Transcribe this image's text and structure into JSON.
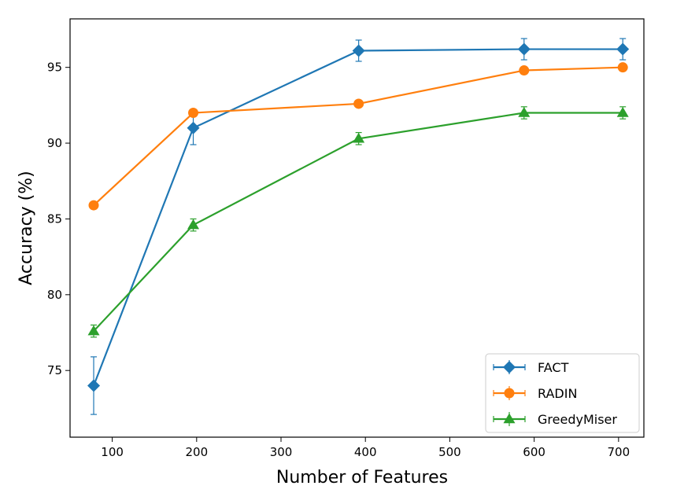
{
  "chart_data": {
    "type": "line",
    "title": "",
    "xlabel": "Number of Features",
    "ylabel": "Accuracy (%)",
    "xlim": [
      50,
      730
    ],
    "ylim": [
      70.6,
      98.2
    ],
    "xticks": [
      100,
      200,
      300,
      400,
      500,
      600,
      700
    ],
    "yticks": [
      75,
      80,
      85,
      90,
      95
    ],
    "grid": false,
    "legend_position": "lower-right",
    "series": [
      {
        "name": "FACT",
        "color": "#1f77b4",
        "marker": "diamond",
        "x": [
          78,
          196,
          392,
          588,
          705
        ],
        "y": [
          74.0,
          91.0,
          96.1,
          96.2,
          96.2
        ],
        "yerr": [
          1.9,
          1.1,
          0.7,
          0.7,
          0.7
        ]
      },
      {
        "name": "RADIN",
        "color": "#ff7f0e",
        "marker": "circle",
        "x": [
          78,
          196,
          392,
          588,
          705
        ],
        "y": [
          85.9,
          92.0,
          92.6,
          94.8,
          95.0
        ],
        "yerr": [
          0,
          0,
          0,
          0,
          0
        ]
      },
      {
        "name": "GreedyMiser",
        "color": "#2ca02c",
        "marker": "triangle",
        "x": [
          78,
          196,
          392,
          588,
          705
        ],
        "y": [
          77.6,
          84.6,
          90.3,
          92.0,
          92.0
        ],
        "yerr": [
          0.4,
          0.4,
          0.4,
          0.4,
          0.4
        ]
      }
    ]
  }
}
